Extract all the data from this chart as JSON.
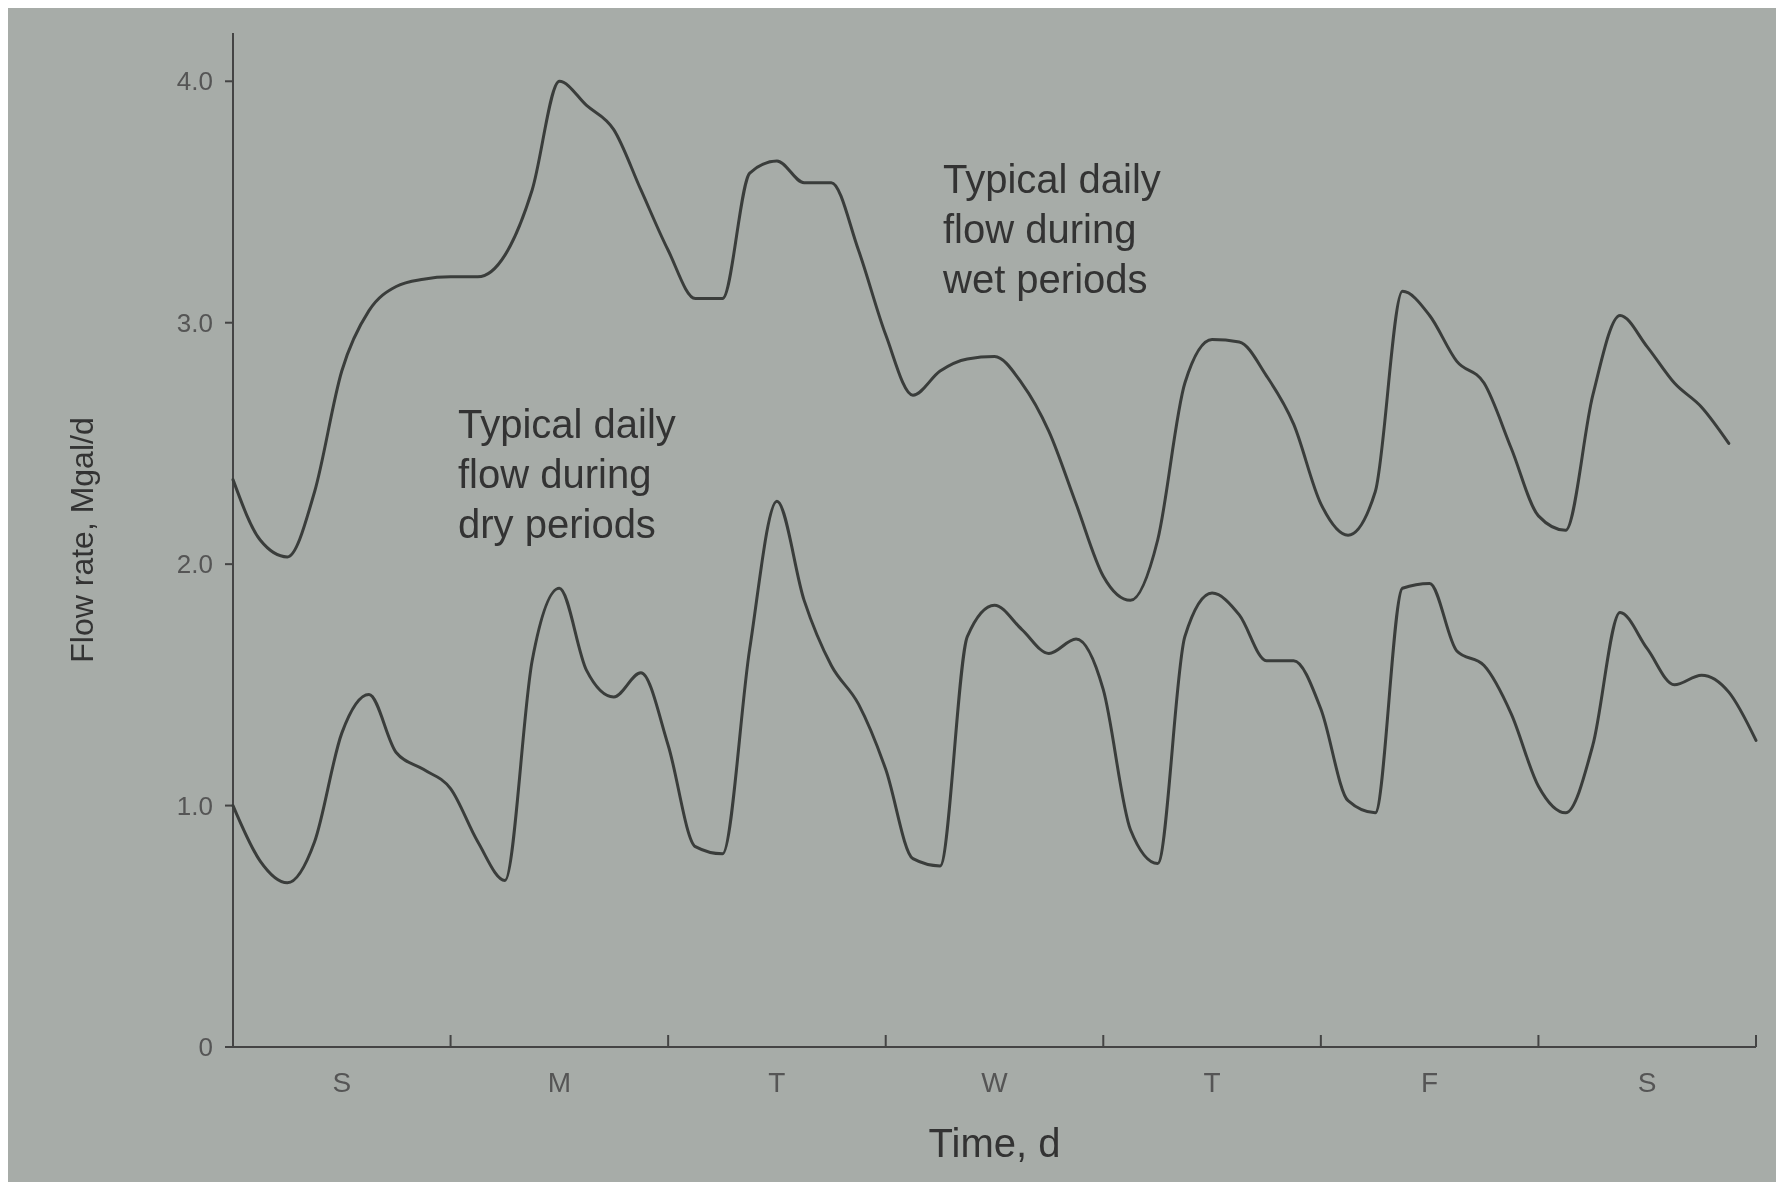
{
  "chart_data": {
    "type": "line",
    "xlabel": "Time, d",
    "ylabel": "Flow rate, Mgal/d",
    "ylim": [
      0,
      4.2
    ],
    "categories": [
      null,
      null,
      null,
      null,
      "S",
      null,
      null,
      null,
      null,
      null,
      null,
      null,
      "M",
      null,
      null,
      null,
      null,
      null,
      null,
      null,
      "T",
      null,
      null,
      null,
      null,
      null,
      null,
      null,
      "W",
      null,
      null,
      null,
      null,
      null,
      null,
      null,
      "T",
      null,
      null,
      null,
      null,
      null,
      null,
      null,
      "F",
      null,
      null,
      null,
      null,
      null,
      null,
      null,
      "S",
      null,
      null,
      null,
      null
    ],
    "yticks": [
      0,
      {
        "value": 1,
        "label": "1.0"
      },
      {
        "value": 2,
        "label": "2.0"
      },
      {
        "value": 3,
        "label": "3.0"
      },
      {
        "value": 4,
        "label": "4.0"
      }
    ],
    "grid": false,
    "marker": "none",
    "line_style": "solid",
    "annotations": [
      "Typical daily\nflow during\nwet periods",
      "Typical daily\nflow during\ndry periods"
    ],
    "series": [
      {
        "color": "#3a3d3b",
        "values": [
          2.35,
          2.1,
          2.03,
          2.3,
          2.8,
          3.05,
          3.15,
          3.18,
          3.19,
          3.19,
          3.28,
          3.55,
          4.0,
          3.9,
          3.8,
          3.55,
          3.3,
          3.1,
          3.1,
          3.62,
          3.67,
          3.58,
          3.58,
          3.3,
          2.95,
          2.7,
          2.8,
          2.85,
          2.86,
          2.75,
          2.55,
          2.25,
          1.95,
          1.85,
          2.1,
          2.75,
          2.93,
          2.92,
          2.78,
          2.58,
          2.25,
          2.12,
          2.3,
          3.13,
          3.03,
          2.84,
          2.75,
          2.48,
          2.2,
          2.14,
          2.7,
          3.03,
          2.9,
          2.75,
          2.65,
          2.5,
          null
        ]
      },
      {
        "color": "#3a3d3b",
        "values": [
          1.0,
          0.77,
          0.68,
          0.85,
          1.3,
          1.46,
          1.22,
          1.15,
          1.07,
          0.85,
          0.69,
          1.6,
          1.9,
          1.56,
          1.45,
          1.55,
          1.25,
          0.83,
          0.8,
          1.65,
          2.26,
          1.85,
          1.58,
          1.42,
          1.15,
          0.78,
          0.75,
          1.7,
          1.83,
          1.73,
          1.63,
          1.69,
          1.48,
          0.9,
          0.76,
          1.7,
          1.88,
          1.79,
          1.6,
          1.6,
          1.4,
          1.02,
          0.97,
          1.9,
          1.92,
          1.64,
          1.58,
          1.38,
          1.08,
          0.97,
          1.25,
          1.8,
          1.65,
          1.5,
          1.54,
          1.47,
          1.27
        ]
      }
    ]
  }
}
